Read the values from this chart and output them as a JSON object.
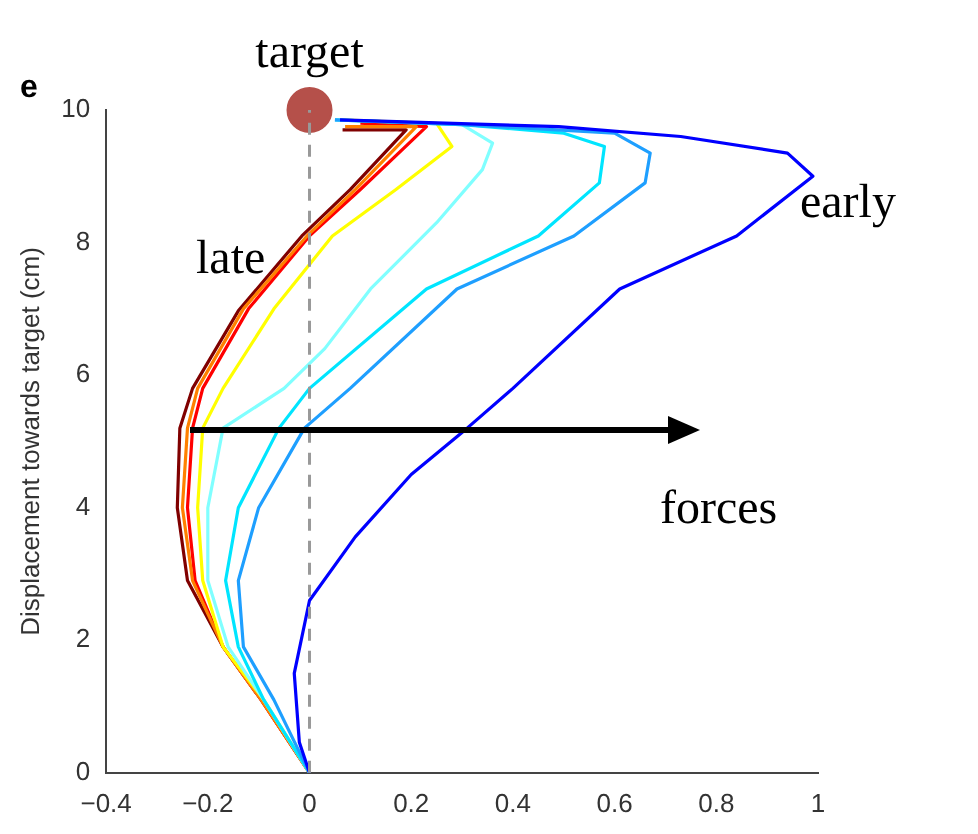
{
  "chart_data": {
    "type": "line",
    "title": "e",
    "ylabel": "Displacement towards target (cm)",
    "xlim": [
      -0.4,
      1
    ],
    "xticks": [
      -0.4,
      -0.2,
      0,
      0.2,
      0.4,
      0.6,
      0.8,
      1
    ],
    "ylim": [
      0,
      10
    ],
    "yticks": [
      0,
      2,
      4,
      6,
      8,
      10
    ],
    "grid": false,
    "legend": false,
    "marker": "none",
    "line_style": "solid",
    "ref_lines": [
      {
        "axis": "x",
        "value": 0,
        "color": "#999999",
        "line_style": "dashed"
      }
    ],
    "annotations": [
      {
        "text": "target",
        "x": 0,
        "y": 10
      },
      "early",
      "late",
      "forces"
    ],
    "series": [
      {
        "color": "#0000ff",
        "x": [
          0,
          -0.02,
          -0.03,
          0,
          0.09,
          0.2,
          0.31,
          0.4,
          0.61,
          0.84,
          0.99,
          0.94,
          0.73,
          0.49,
          0.06
        ],
        "values": [
          0,
          0.46,
          1.5,
          2.6,
          3.56,
          4.5,
          5.2,
          5.8,
          7.3,
          8.1,
          9,
          9.35,
          9.6,
          9.75,
          9.85
        ]
      },
      {
        "color": "#1e9fff",
        "x": [
          0,
          -0.07,
          -0.13,
          -0.14,
          -0.1,
          -0.01,
          0.08,
          0.29,
          0.52,
          0.66,
          0.67,
          0.6,
          0.3,
          0.05
        ],
        "values": [
          0,
          1.1,
          1.9,
          2.9,
          4,
          5.2,
          5.8,
          7.3,
          8.1,
          8.9,
          9.35,
          9.65,
          9.78,
          9.85
        ]
      },
      {
        "color": "#00e5ff",
        "x": [
          0,
          -0.09,
          -0.14,
          -0.165,
          -0.14,
          -0.06,
          0,
          0.23,
          0.45,
          0.57,
          0.58,
          0.5,
          0.3,
          0.05
        ],
        "values": [
          0,
          1.1,
          1.9,
          2.9,
          4,
          5.2,
          5.8,
          7.3,
          8.1,
          8.9,
          9.45,
          9.65,
          9.78,
          9.85
        ]
      },
      {
        "color": "#80ffff",
        "x": [
          0,
          -0.09,
          -0.16,
          -0.2,
          -0.2,
          -0.17,
          -0.05,
          0.03,
          0.12,
          0.25,
          0.34,
          0.36,
          0.3
        ],
        "values": [
          0,
          1.1,
          1.9,
          2.9,
          4,
          5.2,
          5.8,
          6.4,
          7.3,
          8.3,
          9.1,
          9.5,
          9.78
        ]
      },
      {
        "color": "#ffff00",
        "x": [
          0,
          -0.09,
          -0.17,
          -0.21,
          -0.22,
          -0.21,
          -0.17,
          -0.07,
          0.045,
          0.17,
          0.28,
          0.25,
          0.06
        ],
        "values": [
          0,
          1.1,
          1.9,
          2.9,
          4,
          5.2,
          5.8,
          7,
          8.1,
          8.8,
          9.45,
          9.8,
          9.85
        ]
      },
      {
        "color": "#ff8000",
        "x": [
          0,
          -0.095,
          -0.17,
          -0.23,
          -0.25,
          -0.24,
          -0.22,
          -0.13,
          -0.005,
          0.09,
          0.21,
          0.07
        ],
        "values": [
          0,
          1.1,
          1.9,
          2.9,
          4,
          5.2,
          5.8,
          7,
          8.1,
          8.8,
          9.75,
          9.75
        ]
      },
      {
        "color": "#ff0000",
        "x": [
          0,
          -0.095,
          -0.17,
          -0.225,
          -0.24,
          -0.23,
          -0.21,
          -0.12,
          0,
          0.1,
          0.23,
          0.1
        ],
        "values": [
          0,
          1.1,
          1.9,
          2.9,
          4,
          5.2,
          5.8,
          7,
          8.1,
          8.8,
          9.75,
          9.8
        ]
      },
      {
        "color": "#800000",
        "x": [
          0,
          -0.095,
          -0.17,
          -0.24,
          -0.26,
          -0.255,
          -0.23,
          -0.14,
          -0.015,
          0.08,
          0.19,
          0.065
        ],
        "values": [
          0,
          1.1,
          1.9,
          2.9,
          4,
          5.2,
          5.8,
          6.97,
          8.1,
          8.8,
          9.7,
          9.7
        ]
      },
      {
        "type": "scatter",
        "color": "#b5504a",
        "marker": "circle",
        "x": [
          0
        ],
        "values": [
          10
        ]
      }
    ]
  }
}
